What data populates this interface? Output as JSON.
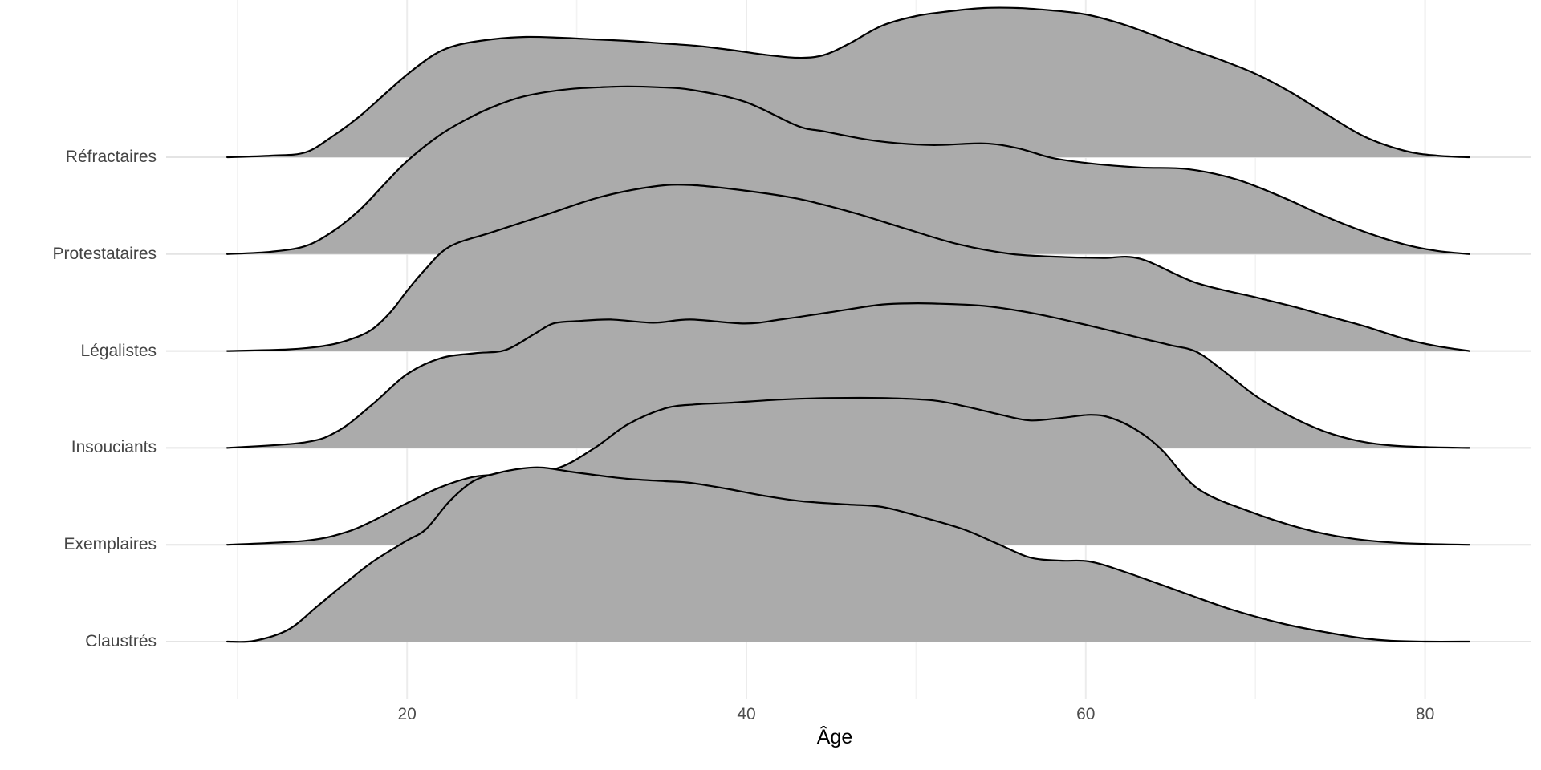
{
  "chart_data": {
    "type": "area",
    "subtype": "ridgeline",
    "title": "",
    "xlabel": "Âge",
    "ylabel": "",
    "legend": "none",
    "grid": "on",
    "x_range_data": [
      9.4,
      82.6
    ],
    "x_ticks": [
      20,
      40,
      60,
      80
    ],
    "x_minor_ticks": [
      10,
      30,
      50,
      70
    ],
    "categories_top_to_bottom": [
      "Réfractaires",
      "Protestataires",
      "Légalistes",
      "Insouciants",
      "Exemplaires",
      "Claustrés"
    ],
    "colors": {
      "fill": "#ABABAB",
      "stroke": "#000000",
      "grid_major": "#ECECEC",
      "grid_minor": "#F3F3F3",
      "row_line": "#E4E4E4",
      "axis_text": "#4d4d4d",
      "category_text": "#454545",
      "axis_title": "#000000"
    },
    "note": "Each series lists [age, ridge_height_px] points; height is density ridge elevation above that category baseline (row spacing = 120.8px, overlap ~1.8 rows).",
    "series": [
      {
        "name": "Réfractaires",
        "points": [
          [
            9.4,
            0
          ],
          [
            12,
            2
          ],
          [
            14,
            6
          ],
          [
            15.6,
            26
          ],
          [
            17.2,
            51
          ],
          [
            18.7,
            79
          ],
          [
            20,
            103
          ],
          [
            21.6,
            128
          ],
          [
            23,
            140
          ],
          [
            25,
            147
          ],
          [
            27,
            150
          ],
          [
            29,
            149
          ],
          [
            31,
            147
          ],
          [
            33,
            145
          ],
          [
            35,
            142
          ],
          [
            37,
            139
          ],
          [
            39,
            134
          ],
          [
            41,
            128
          ],
          [
            43,
            124
          ],
          [
            44.5,
            127
          ],
          [
            46,
            141
          ],
          [
            48,
            164
          ],
          [
            50,
            176
          ],
          [
            52,
            182
          ],
          [
            54,
            186
          ],
          [
            56,
            186
          ],
          [
            58,
            183
          ],
          [
            60,
            178
          ],
          [
            62,
            167
          ],
          [
            64,
            152
          ],
          [
            66,
            136
          ],
          [
            68,
            121
          ],
          [
            70,
            104
          ],
          [
            72,
            82
          ],
          [
            74,
            56
          ],
          [
            76.4,
            26
          ],
          [
            78.8,
            8
          ],
          [
            80.7,
            2
          ],
          [
            82.6,
            0
          ]
        ]
      },
      {
        "name": "Protestataires",
        "points": [
          [
            9.4,
            0
          ],
          [
            12,
            3
          ],
          [
            14,
            10
          ],
          [
            15.6,
            28
          ],
          [
            17.2,
            55
          ],
          [
            18.7,
            88
          ],
          [
            20,
            116
          ],
          [
            21.9,
            148
          ],
          [
            23.5,
            168
          ],
          [
            25,
            183
          ],
          [
            26.6,
            195
          ],
          [
            28.2,
            202
          ],
          [
            29.7,
            206
          ],
          [
            31.4,
            208
          ],
          [
            33,
            209
          ],
          [
            34.8,
            208
          ],
          [
            36.7,
            205
          ],
          [
            39.9,
            190
          ],
          [
            43,
            160
          ],
          [
            44.6,
            153
          ],
          [
            47.7,
            141
          ],
          [
            50.9,
            136
          ],
          [
            54,
            138
          ],
          [
            56,
            132
          ],
          [
            58,
            120
          ],
          [
            60.3,
            113
          ],
          [
            63.2,
            108
          ],
          [
            66,
            106
          ],
          [
            68.9,
            93
          ],
          [
            71.7,
            70
          ],
          [
            74,
            48
          ],
          [
            76.4,
            28
          ],
          [
            78.8,
            12
          ],
          [
            80.7,
            4
          ],
          [
            82.6,
            0
          ]
        ]
      },
      {
        "name": "Légalistes",
        "points": [
          [
            9.4,
            0
          ],
          [
            13,
            2
          ],
          [
            15,
            6
          ],
          [
            16.3,
            12
          ],
          [
            17.8,
            25
          ],
          [
            19,
            48
          ],
          [
            20,
            75
          ],
          [
            21,
            100
          ],
          [
            22.5,
            130
          ],
          [
            25,
            148
          ],
          [
            28.2,
            170
          ],
          [
            31.4,
            192
          ],
          [
            34.5,
            205
          ],
          [
            36.7,
            207
          ],
          [
            39.9,
            200
          ],
          [
            43,
            190
          ],
          [
            46.2,
            173
          ],
          [
            49.3,
            153
          ],
          [
            52.5,
            133
          ],
          [
            55.6,
            121
          ],
          [
            58.8,
            117
          ],
          [
            61,
            116
          ],
          [
            63.2,
            115
          ],
          [
            66.5,
            85
          ],
          [
            69.8,
            68
          ],
          [
            72.3,
            55
          ],
          [
            74.5,
            42
          ],
          [
            76.4,
            31
          ],
          [
            78.8,
            15
          ],
          [
            80.7,
            6
          ],
          [
            82.6,
            0
          ]
        ]
      },
      {
        "name": "Insouciants",
        "points": [
          [
            9.4,
            0
          ],
          [
            14,
            7
          ],
          [
            16,
            22
          ],
          [
            18,
            55
          ],
          [
            20,
            92
          ],
          [
            22,
            112
          ],
          [
            24,
            118
          ],
          [
            25.8,
            122
          ],
          [
            27.5,
            142
          ],
          [
            28.6,
            155
          ],
          [
            30,
            158
          ],
          [
            32,
            160
          ],
          [
            34.5,
            156
          ],
          [
            36.7,
            160
          ],
          [
            39.9,
            155
          ],
          [
            42,
            160
          ],
          [
            44.6,
            168
          ],
          [
            47.7,
            178
          ],
          [
            49.3,
            180
          ],
          [
            50.9,
            180
          ],
          [
            54,
            177
          ],
          [
            57.1,
            167
          ],
          [
            60.3,
            152
          ],
          [
            63.2,
            137
          ],
          [
            65,
            128
          ],
          [
            66.5,
            120
          ],
          [
            68,
            98
          ],
          [
            70,
            65
          ],
          [
            72,
            40
          ],
          [
            74,
            21
          ],
          [
            76,
            9
          ],
          [
            78,
            3
          ],
          [
            80,
            1
          ],
          [
            82.6,
            0
          ]
        ]
      },
      {
        "name": "Exemplaires",
        "points": [
          [
            9.4,
            0
          ],
          [
            14,
            5
          ],
          [
            16.3,
            15
          ],
          [
            18,
            30
          ],
          [
            20,
            52
          ],
          [
            22,
            72
          ],
          [
            24,
            85
          ],
          [
            26,
            88
          ],
          [
            28.8,
            95
          ],
          [
            31,
            120
          ],
          [
            33,
            150
          ],
          [
            35.2,
            170
          ],
          [
            37,
            175
          ],
          [
            39,
            177
          ],
          [
            42,
            181
          ],
          [
            45,
            183
          ],
          [
            48,
            183
          ],
          [
            51,
            180
          ],
          [
            53,
            172
          ],
          [
            55,
            162
          ],
          [
            56.7,
            155
          ],
          [
            58.5,
            158
          ],
          [
            60.3,
            162
          ],
          [
            61.5,
            158
          ],
          [
            63,
            143
          ],
          [
            64.5,
            118
          ],
          [
            66.6,
            70
          ],
          [
            69.6,
            42
          ],
          [
            72.8,
            20
          ],
          [
            75.6,
            8
          ],
          [
            78.7,
            2
          ],
          [
            82.6,
            0
          ]
        ]
      },
      {
        "name": "Claustrés",
        "points": [
          [
            9.4,
            0
          ],
          [
            11,
            1
          ],
          [
            13,
            15
          ],
          [
            14.7,
            44
          ],
          [
            16.3,
            72
          ],
          [
            18,
            100
          ],
          [
            19.9,
            125
          ],
          [
            21.1,
            140
          ],
          [
            22.5,
            175
          ],
          [
            23.9,
            200
          ],
          [
            25.3,
            210
          ],
          [
            26.8,
            216
          ],
          [
            28,
            217
          ],
          [
            29.6,
            212
          ],
          [
            31,
            208
          ],
          [
            33,
            203
          ],
          [
            35.2,
            200
          ],
          [
            36.7,
            198
          ],
          [
            39,
            190
          ],
          [
            41,
            182
          ],
          [
            43.3,
            175
          ],
          [
            46,
            171
          ],
          [
            48,
            168
          ],
          [
            50.4,
            155
          ],
          [
            52.8,
            140
          ],
          [
            54.8,
            122
          ],
          [
            56.7,
            105
          ],
          [
            58.5,
            101
          ],
          [
            60.2,
            100
          ],
          [
            62.3,
            87
          ],
          [
            65.5,
            63
          ],
          [
            68.6,
            40
          ],
          [
            71.7,
            22
          ],
          [
            74.6,
            10
          ],
          [
            76.4,
            4
          ],
          [
            78,
            1
          ],
          [
            80,
            0
          ],
          [
            82.6,
            0
          ]
        ]
      }
    ]
  }
}
